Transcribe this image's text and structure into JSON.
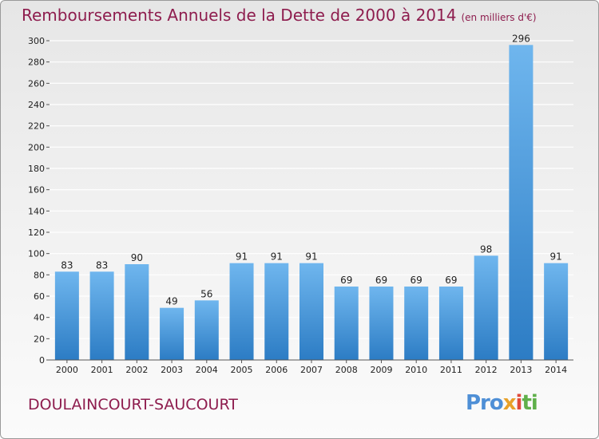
{
  "chart_data": {
    "type": "bar",
    "title": "Remboursements Annuels de la Dette de 2000 à 2014",
    "subtitle": "(en milliers d'€)",
    "categories": [
      "2000",
      "2001",
      "2002",
      "2003",
      "2004",
      "2005",
      "2006",
      "2007",
      "2008",
      "2009",
      "2010",
      "2011",
      "2012",
      "2013",
      "2014"
    ],
    "values": [
      83,
      83,
      90,
      49,
      56,
      91,
      91,
      91,
      69,
      69,
      69,
      69,
      98,
      296,
      91
    ],
    "ylim": [
      0,
      300
    ],
    "yticks": [
      0,
      20,
      40,
      60,
      80,
      100,
      120,
      140,
      160,
      180,
      200,
      220,
      240,
      260,
      280,
      300
    ],
    "xlabel": "",
    "ylabel": "",
    "grid": true,
    "colors": {
      "bar_light": "#6fb6ee",
      "bar_dark": "#2c7cc4",
      "grid": "#ffffff",
      "text": "#222222"
    }
  },
  "footer": {
    "commune": "DOULAINCOURT-SAUCOURT",
    "logo": {
      "p1": "Pro",
      "p2": "x",
      "p3": "i",
      "p4": "ti"
    }
  }
}
